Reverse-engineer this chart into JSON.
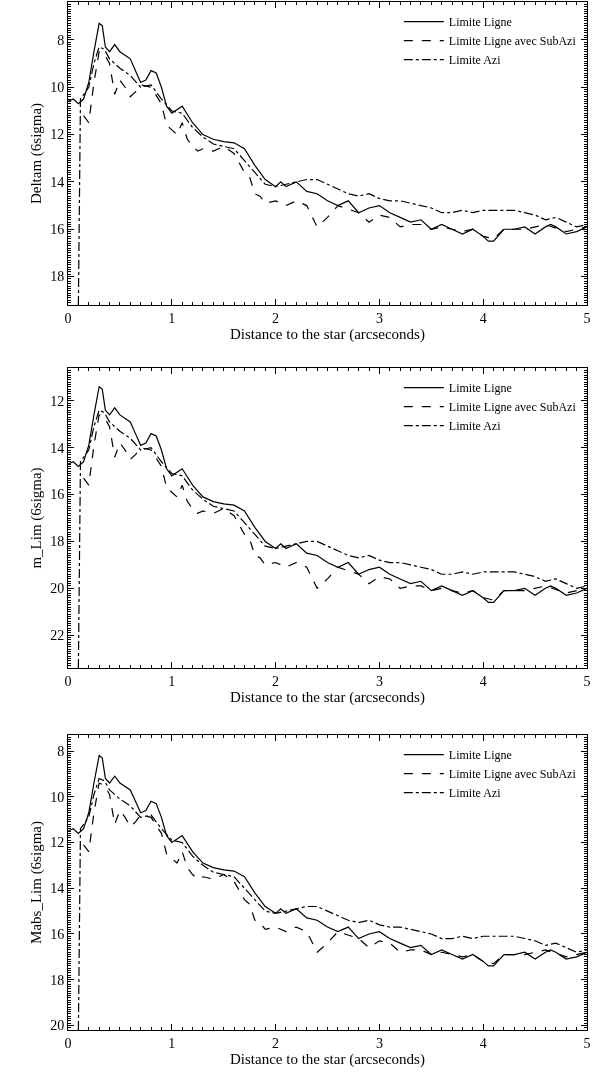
{
  "chart_data": [
    {
      "type": "line",
      "xlabel": "Distance to the star (arcseconds)",
      "ylabel": "Deltam (6sigma)",
      "xlim": [
        0,
        5
      ],
      "xticks": [
        0,
        1,
        2,
        3,
        4,
        5
      ],
      "ylim": [
        19.2,
        6.4
      ],
      "yticks": [
        8,
        10,
        12,
        14,
        16,
        18
      ],
      "legend": "top right",
      "marker": "none",
      "series": [
        {
          "name": "Limite Ligne",
          "color": "#000000",
          "line_style": "solid",
          "x": [
            0,
            0.05,
            0.1,
            0.15,
            0.2,
            0.25,
            0.3,
            0.33,
            0.36,
            0.4,
            0.45,
            0.5,
            0.6,
            0.65,
            0.7,
            0.75,
            0.8,
            0.85,
            0.9,
            0.95,
            1.0,
            1.1,
            1.2,
            1.3,
            1.4,
            1.5,
            1.6,
            1.7,
            1.8,
            1.9,
            2.0,
            2.05,
            2.1,
            2.2,
            2.3,
            2.4,
            2.5,
            2.6,
            2.7,
            2.8,
            2.9,
            3.0,
            3.1,
            3.2,
            3.3,
            3.4,
            3.5,
            3.6,
            3.7,
            3.8,
            3.9,
            4.0,
            4.05,
            4.1,
            4.2,
            4.3,
            4.4,
            4.5,
            4.6,
            4.65,
            4.7,
            4.8,
            4.9,
            5.0
          ],
          "values": [
            10.6,
            10.5,
            10.7,
            10.5,
            9.8,
            8.5,
            7.3,
            7.4,
            8.3,
            8.5,
            8.2,
            8.5,
            8.8,
            9.3,
            9.8,
            9.7,
            9.3,
            9.4,
            10.0,
            10.8,
            11.1,
            10.8,
            11.5,
            12.0,
            12.2,
            12.3,
            12.35,
            12.6,
            13.3,
            13.9,
            14.2,
            14.0,
            14.2,
            14.0,
            14.4,
            14.5,
            14.8,
            15.0,
            14.8,
            15.3,
            15.1,
            15.0,
            15.3,
            15.5,
            15.7,
            15.6,
            16.0,
            15.8,
            16.0,
            16.2,
            16.0,
            16.3,
            16.5,
            16.5,
            16.0,
            16.0,
            15.9,
            16.2,
            15.9,
            15.8,
            15.9,
            16.2,
            16.1,
            15.9
          ]
        },
        {
          "name": "Limite Ligne avec SubAzi",
          "color": "#000000",
          "line_style": "dashed",
          "x": [
            0.15,
            0.2,
            0.25,
            0.3,
            0.35,
            0.4,
            0.45,
            0.5,
            0.55,
            0.6,
            0.65,
            0.7,
            0.8,
            0.9,
            0.95,
            1.0,
            1.05,
            1.1,
            1.15,
            1.2,
            1.25,
            1.3,
            1.4,
            1.5,
            1.6,
            1.7,
            1.75,
            1.8,
            1.85,
            1.9,
            2.0,
            2.1,
            2.2,
            2.3,
            2.4,
            2.5,
            2.6,
            2.8,
            2.9,
            3.0,
            3.1,
            3.2,
            3.3,
            3.4,
            3.5,
            3.6,
            3.7,
            3.8,
            3.9,
            4.0,
            4.1,
            4.2,
            4.4,
            4.6,
            4.8,
            5.0
          ],
          "values": [
            11.2,
            11.5,
            9.8,
            8.5,
            8.6,
            9.0,
            10.3,
            9.7,
            10.0,
            10.4,
            10.2,
            9.9,
            10.0,
            10.7,
            11.6,
            11.8,
            12.0,
            11.5,
            12.2,
            12.5,
            12.7,
            12.6,
            12.7,
            12.5,
            12.8,
            13.6,
            13.8,
            14.5,
            14.6,
            14.9,
            14.8,
            15.0,
            14.8,
            15.0,
            15.9,
            15.5,
            15.0,
            15.3,
            15.7,
            15.4,
            15.5,
            15.9,
            15.8,
            15.8,
            16.0,
            15.9,
            16.0,
            16.1,
            16.0,
            16.3,
            16.4,
            16.0,
            16.0,
            15.8,
            16.1,
            15.9
          ]
        },
        {
          "name": "Limite Azi",
          "color": "#000000",
          "line_style": "dashdot",
          "x": [
            0.1,
            0.12,
            0.2,
            0.25,
            0.3,
            0.35,
            0.4,
            0.5,
            0.6,
            0.7,
            0.8,
            0.9,
            1.0,
            1.1,
            1.2,
            1.3,
            1.4,
            1.5,
            1.6,
            1.7,
            1.8,
            1.9,
            2.0,
            2.1,
            2.2,
            2.3,
            2.4,
            2.5,
            2.6,
            2.7,
            2.8,
            2.9,
            3.0,
            3.1,
            3.2,
            3.3,
            3.4,
            3.5,
            3.6,
            3.7,
            3.8,
            3.9,
            4.0,
            4.1,
            4.2,
            4.3,
            4.4,
            4.5,
            4.6,
            4.7,
            4.8,
            4.9,
            5.0
          ],
          "values": [
            19.2,
            10.5,
            10.0,
            9.0,
            8.3,
            8.4,
            8.8,
            9.2,
            9.5,
            10.0,
            9.9,
            10.5,
            11.0,
            11.1,
            11.7,
            12.1,
            12.4,
            12.5,
            12.6,
            13.1,
            13.6,
            14.1,
            14.2,
            14.1,
            14.0,
            13.9,
            13.9,
            14.1,
            14.3,
            14.5,
            14.6,
            14.5,
            14.7,
            14.8,
            14.8,
            14.9,
            15.0,
            15.1,
            15.3,
            15.3,
            15.2,
            15.3,
            15.2,
            15.2,
            15.2,
            15.2,
            15.3,
            15.4,
            15.6,
            15.5,
            15.7,
            15.9,
            15.8
          ]
        }
      ]
    },
    {
      "type": "line",
      "xlabel": "Distance to the star (arcseconds)",
      "ylabel": "m_Lim (6sigma)",
      "xlim": [
        0,
        5
      ],
      "xticks": [
        0,
        1,
        2,
        3,
        4,
        5
      ],
      "ylim": [
        23.4,
        10.6
      ],
      "yticks": [
        12,
        14,
        16,
        18,
        20,
        22
      ],
      "legend": "top right",
      "marker": "none",
      "series": [
        {
          "name": "Limite Ligne",
          "color": "#000000",
          "line_style": "solid",
          "x": [
            0,
            0.05,
            0.1,
            0.15,
            0.2,
            0.25,
            0.3,
            0.33,
            0.36,
            0.4,
            0.45,
            0.5,
            0.6,
            0.65,
            0.7,
            0.75,
            0.8,
            0.85,
            0.9,
            0.95,
            1.0,
            1.1,
            1.2,
            1.3,
            1.4,
            1.5,
            1.6,
            1.7,
            1.8,
            1.9,
            2.0,
            2.05,
            2.1,
            2.2,
            2.3,
            2.4,
            2.5,
            2.6,
            2.7,
            2.8,
            2.9,
            3.0,
            3.1,
            3.2,
            3.3,
            3.4,
            3.5,
            3.6,
            3.7,
            3.8,
            3.9,
            4.0,
            4.05,
            4.1,
            4.2,
            4.3,
            4.4,
            4.5,
            4.6,
            4.65,
            4.7,
            4.8,
            4.9,
            5.0
          ],
          "values": [
            14.7,
            14.6,
            14.8,
            14.6,
            13.9,
            12.6,
            11.4,
            11.5,
            12.4,
            12.6,
            12.3,
            12.6,
            12.9,
            13.4,
            13.9,
            13.8,
            13.4,
            13.5,
            14.1,
            14.9,
            15.2,
            14.9,
            15.6,
            16.1,
            16.3,
            16.4,
            16.45,
            16.7,
            17.4,
            18.0,
            18.3,
            18.1,
            18.3,
            18.1,
            18.5,
            18.6,
            18.9,
            19.1,
            18.9,
            19.4,
            19.2,
            19.1,
            19.4,
            19.6,
            19.8,
            19.7,
            20.1,
            19.9,
            20.1,
            20.3,
            20.1,
            20.4,
            20.6,
            20.6,
            20.1,
            20.1,
            20.0,
            20.3,
            20.0,
            19.9,
            20.0,
            20.3,
            20.2,
            20.0
          ]
        },
        {
          "name": "Limite Ligne avec SubAzi",
          "color": "#000000",
          "line_style": "dashed",
          "x": [
            0.15,
            0.2,
            0.25,
            0.3,
            0.35,
            0.4,
            0.45,
            0.5,
            0.55,
            0.6,
            0.65,
            0.7,
            0.8,
            0.9,
            0.95,
            1.0,
            1.05,
            1.1,
            1.15,
            1.2,
            1.25,
            1.3,
            1.4,
            1.5,
            1.6,
            1.7,
            1.75,
            1.8,
            1.85,
            1.9,
            2.0,
            2.1,
            2.2,
            2.3,
            2.4,
            2.5,
            2.6,
            2.8,
            2.9,
            3.0,
            3.1,
            3.2,
            3.3,
            3.4,
            3.5,
            3.6,
            3.7,
            3.8,
            3.9,
            4.0,
            4.1,
            4.2,
            4.4,
            4.6,
            4.8,
            5.0
          ],
          "values": [
            15.3,
            15.6,
            13.9,
            12.6,
            12.7,
            13.1,
            14.4,
            13.8,
            14.1,
            14.5,
            14.3,
            14.0,
            14.1,
            14.8,
            15.7,
            15.9,
            16.1,
            15.6,
            16.3,
            16.6,
            16.8,
            16.7,
            16.8,
            16.6,
            16.9,
            17.7,
            17.9,
            18.6,
            18.7,
            19.0,
            18.9,
            19.1,
            18.9,
            19.1,
            20.0,
            19.6,
            19.1,
            19.4,
            19.8,
            19.5,
            19.6,
            20.0,
            19.9,
            19.9,
            20.1,
            20.0,
            20.1,
            20.2,
            20.1,
            20.4,
            20.5,
            20.1,
            20.1,
            19.9,
            20.2,
            20.0
          ]
        },
        {
          "name": "Limite Azi",
          "color": "#000000",
          "line_style": "dashdot",
          "x": [
            0.1,
            0.12,
            0.2,
            0.25,
            0.3,
            0.35,
            0.4,
            0.5,
            0.6,
            0.7,
            0.8,
            0.9,
            1.0,
            1.1,
            1.2,
            1.3,
            1.4,
            1.5,
            1.6,
            1.7,
            1.8,
            1.9,
            2.0,
            2.1,
            2.2,
            2.3,
            2.4,
            2.5,
            2.6,
            2.7,
            2.8,
            2.9,
            3.0,
            3.1,
            3.2,
            3.3,
            3.4,
            3.5,
            3.6,
            3.7,
            3.8,
            3.9,
            4.0,
            4.1,
            4.2,
            4.3,
            4.4,
            4.5,
            4.6,
            4.7,
            4.8,
            4.9,
            5.0
          ],
          "values": [
            23.4,
            14.6,
            14.1,
            13.1,
            12.4,
            12.5,
            12.9,
            13.3,
            13.6,
            14.1,
            14.0,
            14.6,
            15.1,
            15.2,
            15.8,
            16.2,
            16.5,
            16.6,
            16.7,
            17.2,
            17.7,
            18.2,
            18.3,
            18.2,
            18.1,
            18.0,
            18.0,
            18.2,
            18.4,
            18.6,
            18.7,
            18.6,
            18.8,
            18.9,
            18.9,
            19.0,
            19.1,
            19.2,
            19.4,
            19.4,
            19.3,
            19.4,
            19.3,
            19.3,
            19.3,
            19.3,
            19.4,
            19.5,
            19.7,
            19.6,
            19.8,
            20.0,
            19.9
          ]
        }
      ]
    },
    {
      "type": "line",
      "xlabel": "Distance to the star (arcseconds)",
      "ylabel": "Mabs_Lim (6sigma)",
      "xlim": [
        0,
        5
      ],
      "xticks": [
        0,
        1,
        2,
        3,
        4,
        5
      ],
      "ylim": [
        20.2,
        7.3
      ],
      "yticks": [
        8,
        10,
        12,
        14,
        16,
        18,
        20
      ],
      "legend": "top right",
      "marker": "none",
      "series": [
        {
          "name": "Limite Ligne",
          "color": "#000000",
          "line_style": "solid",
          "x": [
            0,
            0.05,
            0.1,
            0.15,
            0.2,
            0.25,
            0.3,
            0.33,
            0.36,
            0.4,
            0.45,
            0.5,
            0.6,
            0.65,
            0.7,
            0.75,
            0.8,
            0.85,
            0.9,
            0.95,
            1.0,
            1.1,
            1.2,
            1.3,
            1.4,
            1.5,
            1.6,
            1.7,
            1.8,
            1.9,
            2.0,
            2.05,
            2.1,
            2.2,
            2.3,
            2.4,
            2.5,
            2.6,
            2.7,
            2.8,
            2.9,
            3.0,
            3.1,
            3.2,
            3.3,
            3.4,
            3.5,
            3.6,
            3.7,
            3.8,
            3.9,
            4.0,
            4.05,
            4.1,
            4.2,
            4.3,
            4.4,
            4.5,
            4.6,
            4.65,
            4.7,
            4.8,
            4.9,
            5.0
          ],
          "values": [
            11.5,
            11.4,
            11.6,
            11.4,
            10.7,
            9.4,
            8.2,
            8.3,
            9.2,
            9.4,
            9.1,
            9.4,
            9.7,
            10.2,
            10.7,
            10.6,
            10.2,
            10.3,
            10.9,
            11.7,
            12.0,
            11.7,
            12.4,
            12.9,
            13.1,
            13.2,
            13.25,
            13.5,
            14.2,
            14.8,
            15.1,
            14.9,
            15.1,
            14.9,
            15.3,
            15.4,
            15.7,
            15.9,
            15.7,
            16.2,
            16.0,
            15.9,
            16.2,
            16.4,
            16.6,
            16.5,
            16.9,
            16.7,
            16.9,
            17.1,
            16.9,
            17.2,
            17.4,
            17.4,
            16.9,
            16.9,
            16.8,
            17.1,
            16.8,
            16.7,
            16.8,
            17.1,
            17.0,
            16.8
          ]
        },
        {
          "name": "Limite Ligne avec SubAzi",
          "color": "#000000",
          "line_style": "dashed",
          "x": [
            0.15,
            0.2,
            0.25,
            0.3,
            0.35,
            0.4,
            0.45,
            0.5,
            0.55,
            0.6,
            0.65,
            0.7,
            0.8,
            0.9,
            0.95,
            1.0,
            1.05,
            1.1,
            1.15,
            1.2,
            1.25,
            1.3,
            1.4,
            1.5,
            1.6,
            1.7,
            1.75,
            1.8,
            1.85,
            1.9,
            2.0,
            2.1,
            2.2,
            2.3,
            2.4,
            2.5,
            2.6,
            2.8,
            2.9,
            3.0,
            3.1,
            3.2,
            3.3,
            3.4,
            3.5,
            3.6,
            3.7,
            3.8,
            3.9,
            4.0,
            4.1,
            4.2,
            4.4,
            4.6,
            4.8,
            5.0
          ],
          "values": [
            12.1,
            12.4,
            10.7,
            9.4,
            9.5,
            9.9,
            11.2,
            10.6,
            10.9,
            11.3,
            11.1,
            10.8,
            10.9,
            11.6,
            12.5,
            12.7,
            12.9,
            12.4,
            13.1,
            13.4,
            13.6,
            13.5,
            13.6,
            13.4,
            13.7,
            14.5,
            14.7,
            15.4,
            15.5,
            15.8,
            15.7,
            15.9,
            15.7,
            15.9,
            16.8,
            16.4,
            15.9,
            16.2,
            16.6,
            16.3,
            16.4,
            16.8,
            16.7,
            16.7,
            16.9,
            16.8,
            16.9,
            17.0,
            16.9,
            17.2,
            17.3,
            16.9,
            16.9,
            16.7,
            17.0,
            16.8
          ]
        },
        {
          "name": "Limite Azi",
          "color": "#000000",
          "line_style": "dashdot",
          "x": [
            0.1,
            0.12,
            0.2,
            0.25,
            0.3,
            0.35,
            0.4,
            0.5,
            0.6,
            0.7,
            0.8,
            0.9,
            1.0,
            1.1,
            1.2,
            1.3,
            1.4,
            1.5,
            1.6,
            1.7,
            1.8,
            1.9,
            2.0,
            2.1,
            2.2,
            2.3,
            2.4,
            2.5,
            2.6,
            2.7,
            2.8,
            2.9,
            3.0,
            3.1,
            3.2,
            3.3,
            3.4,
            3.5,
            3.6,
            3.7,
            3.8,
            3.9,
            4.0,
            4.1,
            4.2,
            4.3,
            4.4,
            4.5,
            4.6,
            4.7,
            4.8,
            4.9,
            5.0
          ],
          "values": [
            20.2,
            11.4,
            10.9,
            9.9,
            9.2,
            9.3,
            9.7,
            10.1,
            10.4,
            10.9,
            10.8,
            11.4,
            11.9,
            12.0,
            12.6,
            13.0,
            13.3,
            13.4,
            13.5,
            14.0,
            14.5,
            15.0,
            15.1,
            15.0,
            14.9,
            14.8,
            14.8,
            15.0,
            15.2,
            15.4,
            15.5,
            15.4,
            15.6,
            15.7,
            15.7,
            15.8,
            15.9,
            16.0,
            16.2,
            16.2,
            16.1,
            16.2,
            16.1,
            16.1,
            16.1,
            16.1,
            16.2,
            16.3,
            16.5,
            16.4,
            16.6,
            16.8,
            16.7
          ]
        }
      ]
    }
  ]
}
